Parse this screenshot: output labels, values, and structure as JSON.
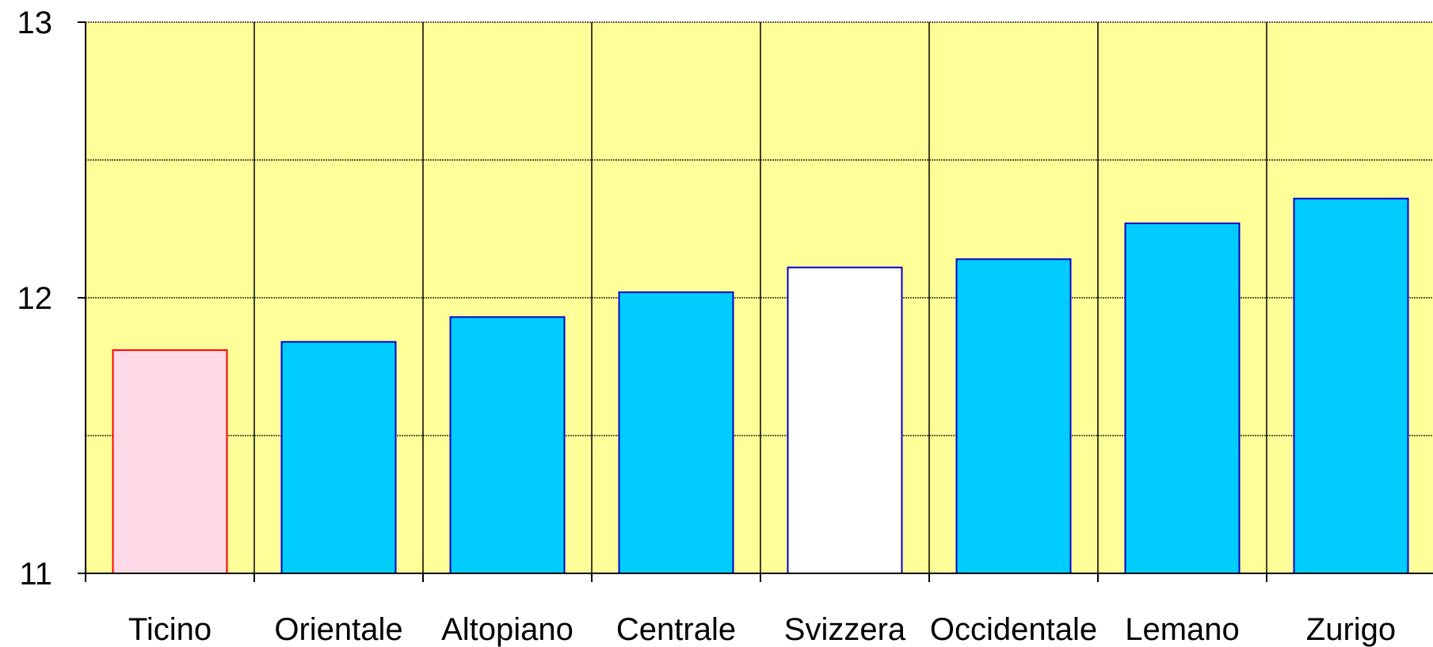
{
  "chart_data": {
    "type": "bar",
    "categories": [
      "Ticino",
      "Orientale",
      "Altopiano",
      "Centrale",
      "Svizzera",
      "Occidentale",
      "Lemano",
      "Zurigo"
    ],
    "values": [
      11.81,
      11.84,
      11.93,
      12.02,
      12.11,
      12.14,
      12.27,
      12.36
    ],
    "bar_styles": [
      {
        "fill": "#ffd9e8",
        "stroke": "#ff0000"
      },
      {
        "fill": "#00ccff",
        "stroke": "#0000cc"
      },
      {
        "fill": "#00ccff",
        "stroke": "#0000cc"
      },
      {
        "fill": "#00ccff",
        "stroke": "#0000cc"
      },
      {
        "fill": "#ffffff",
        "stroke": "#0000cc"
      },
      {
        "fill": "#00ccff",
        "stroke": "#0000cc"
      },
      {
        "fill": "#00ccff",
        "stroke": "#0000cc"
      },
      {
        "fill": "#00ccff",
        "stroke": "#0000cc"
      }
    ],
    "ylim": [
      11,
      13
    ],
    "y_ticks": [
      "11",
      "12",
      "13"
    ],
    "y_minor_step": 0.5,
    "grid": true,
    "plot_background": "#ffff99",
    "title": "",
    "xlabel": "",
    "ylabel": ""
  }
}
